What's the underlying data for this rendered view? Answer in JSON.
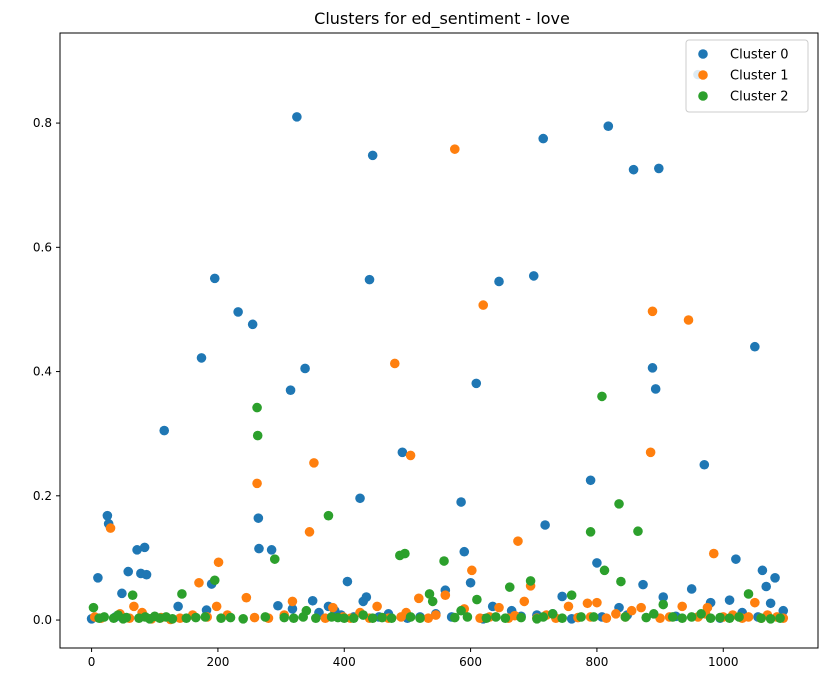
{
  "chart_data": {
    "type": "scatter",
    "title": "Clusters for ed_sentiment - love",
    "xlabel": "",
    "ylabel": "",
    "xlim": [
      -50,
      1150
    ],
    "ylim": [
      -0.045,
      0.945
    ],
    "xticks": [
      0,
      200,
      400,
      600,
      800,
      1000
    ],
    "yticks": [
      0.0,
      0.2,
      0.4,
      0.6,
      0.8
    ],
    "ytick_labels": [
      "0.0",
      "0.2",
      "0.4",
      "0.6",
      "0.8"
    ],
    "grid": false,
    "legend_position": "top-right",
    "series": [
      {
        "name": "Cluster 0",
        "color": "#1f77b4",
        "x": [
          0,
          10,
          25,
          27,
          38,
          48,
          58,
          72,
          78,
          84,
          87,
          115,
          137,
          174,
          182,
          190,
          195,
          232,
          255,
          264,
          265,
          285,
          295,
          315,
          318,
          325,
          338,
          350,
          360,
          375,
          385,
          395,
          405,
          415,
          425,
          430,
          435,
          440,
          445,
          455,
          470,
          492,
          500,
          520,
          545,
          560,
          570,
          585,
          590,
          600,
          609,
          620,
          635,
          645,
          665,
          680,
          700,
          705,
          715,
          718,
          730,
          745,
          760,
          790,
          800,
          808,
          818,
          835,
          848,
          858,
          873,
          888,
          893,
          898,
          905,
          925,
          950,
          960,
          970,
          980,
          995,
          1010,
          1020,
          1030,
          1050,
          1055,
          1062,
          1068,
          1075,
          1082,
          1095
        ],
        "y": [
          0.002,
          0.068,
          0.168,
          0.155,
          0.005,
          0.043,
          0.078,
          0.113,
          0.075,
          0.117,
          0.073,
          0.305,
          0.022,
          0.422,
          0.016,
          0.058,
          0.55,
          0.496,
          0.476,
          0.164,
          0.115,
          0.113,
          0.023,
          0.37,
          0.018,
          0.81,
          0.405,
          0.031,
          0.012,
          0.022,
          0.015,
          0.008,
          0.062,
          0.005,
          0.196,
          0.03,
          0.037,
          0.548,
          0.748,
          0.005,
          0.01,
          0.27,
          0.003,
          0.005,
          0.01,
          0.048,
          0.005,
          0.19,
          0.11,
          0.06,
          0.381,
          0.002,
          0.022,
          0.545,
          0.015,
          0.006,
          0.554,
          0.008,
          0.775,
          0.153,
          0.01,
          0.038,
          0.002,
          0.225,
          0.092,
          0.005,
          0.795,
          0.02,
          0.008,
          0.725,
          0.057,
          0.406,
          0.372,
          0.727,
          0.037,
          0.006,
          0.05,
          0.878,
          0.25,
          0.028,
          0.003,
          0.032,
          0.098,
          0.012,
          0.44,
          0.005,
          0.08,
          0.054,
          0.027,
          0.068,
          0.015
        ]
      },
      {
        "name": "Cluster 1",
        "color": "#ff7f0e",
        "x": [
          5,
          15,
          30,
          45,
          60,
          67,
          80,
          95,
          110,
          125,
          140,
          160,
          170,
          183,
          198,
          201,
          215,
          245,
          258,
          262,
          280,
          305,
          318,
          345,
          352,
          370,
          382,
          398,
          410,
          425,
          440,
          452,
          470,
          480,
          490,
          498,
          505,
          518,
          533,
          545,
          560,
          575,
          590,
          602,
          615,
          620,
          630,
          645,
          660,
          670,
          675,
          685,
          695,
          705,
          720,
          735,
          755,
          770,
          785,
          790,
          800,
          815,
          830,
          845,
          855,
          870,
          885,
          888,
          900,
          915,
          935,
          945,
          960,
          972,
          975,
          985,
          1000,
          1015,
          1030,
          1040,
          1050,
          1060,
          1070,
          1085,
          1095
        ],
        "y": [
          0.005,
          0.003,
          0.148,
          0.01,
          0.003,
          0.022,
          0.012,
          0.002,
          0.004,
          0.001,
          0.003,
          0.008,
          0.06,
          0.005,
          0.022,
          0.093,
          0.008,
          0.036,
          0.004,
          0.22,
          0.003,
          0.008,
          0.03,
          0.142,
          0.253,
          0.003,
          0.02,
          0.005,
          0.003,
          0.012,
          0.003,
          0.022,
          0.003,
          0.413,
          0.005,
          0.012,
          0.265,
          0.035,
          0.003,
          0.008,
          0.04,
          0.758,
          0.018,
          0.08,
          0.003,
          0.507,
          0.005,
          0.02,
          0.003,
          0.007,
          0.127,
          0.03,
          0.055,
          0.003,
          0.008,
          0.003,
          0.022,
          0.004,
          0.027,
          0.005,
          0.028,
          0.003,
          0.01,
          0.005,
          0.015,
          0.02,
          0.27,
          0.497,
          0.003,
          0.005,
          0.022,
          0.483,
          0.005,
          0.01,
          0.02,
          0.107,
          0.005,
          0.008,
          0.003,
          0.005,
          0.028,
          0.003,
          0.008,
          0.005,
          0.003
        ]
      },
      {
        "name": "Cluster 2",
        "color": "#2ca02c",
        "x": [
          3,
          12,
          20,
          35,
          42,
          50,
          55,
          65,
          75,
          85,
          92,
          100,
          108,
          118,
          128,
          143,
          150,
          165,
          180,
          195,
          205,
          220,
          240,
          262,
          263,
          275,
          290,
          305,
          320,
          335,
          340,
          355,
          375,
          380,
          390,
          400,
          415,
          430,
          445,
          460,
          475,
          488,
          496,
          505,
          520,
          535,
          540,
          558,
          575,
          585,
          595,
          610,
          625,
          640,
          655,
          662,
          680,
          695,
          705,
          715,
          730,
          745,
          760,
          775,
          790,
          795,
          808,
          812,
          835,
          838,
          845,
          865,
          878,
          890,
          905,
          920,
          935,
          950,
          965,
          980,
          995,
          1010,
          1025,
          1040,
          1060,
          1075,
          1090
        ],
        "y": [
          0.02,
          0.003,
          0.005,
          0.003,
          0.008,
          0.002,
          0.004,
          0.04,
          0.003,
          0.005,
          0.002,
          0.006,
          0.003,
          0.005,
          0.002,
          0.042,
          0.003,
          0.004,
          0.005,
          0.064,
          0.003,
          0.004,
          0.002,
          0.342,
          0.297,
          0.005,
          0.098,
          0.004,
          0.003,
          0.005,
          0.015,
          0.003,
          0.168,
          0.005,
          0.004,
          0.003,
          0.003,
          0.008,
          0.003,
          0.004,
          0.003,
          0.104,
          0.107,
          0.005,
          0.003,
          0.042,
          0.03,
          0.095,
          0.004,
          0.015,
          0.005,
          0.033,
          0.003,
          0.005,
          0.003,
          0.053,
          0.004,
          0.063,
          0.002,
          0.005,
          0.01,
          0.003,
          0.04,
          0.005,
          0.142,
          0.005,
          0.36,
          0.08,
          0.187,
          0.062,
          0.005,
          0.143,
          0.004,
          0.01,
          0.025,
          0.005,
          0.003,
          0.005,
          0.01,
          0.003,
          0.004,
          0.003,
          0.005,
          0.042,
          0.003,
          0.002,
          0.003
        ]
      }
    ]
  }
}
